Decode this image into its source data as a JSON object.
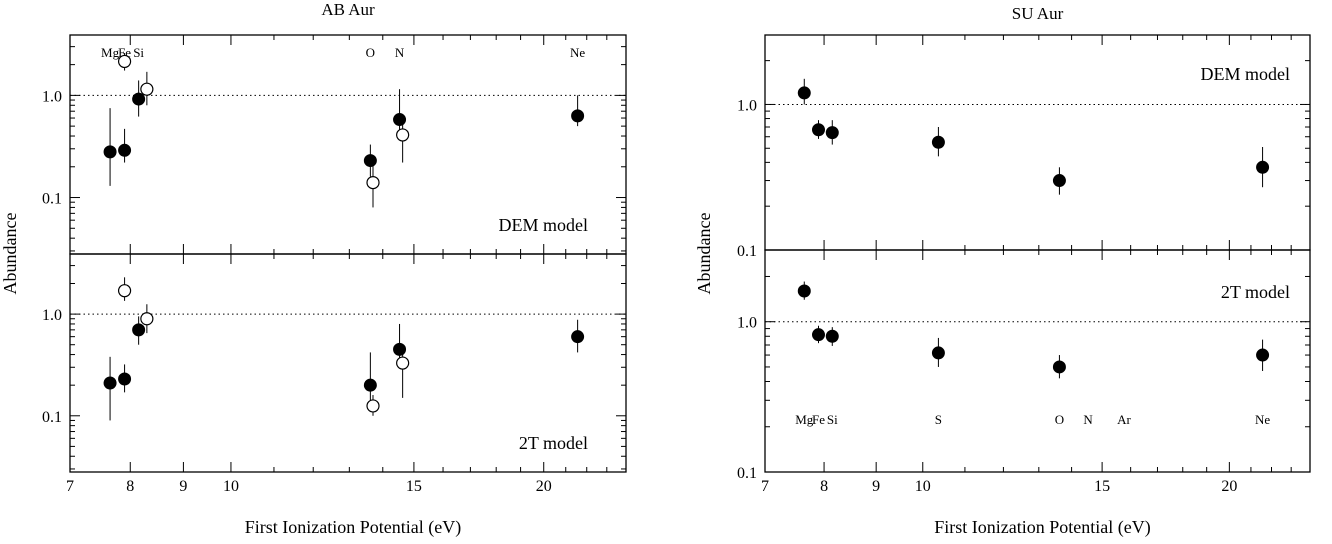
{
  "chart_data": [
    {
      "type": "scatter",
      "title": "AB Aur",
      "xlabel": "First Ionization Potential (eV)",
      "ylabel": "Abundance",
      "xscale": "log",
      "yscale": "log",
      "xlim": [
        7,
        24
      ],
      "x_ticks": [
        7,
        8,
        9,
        10,
        15,
        20
      ],
      "grid": false,
      "reference_line": {
        "y": 1.0,
        "style": "dotted"
      },
      "element_labels": [
        {
          "text": "Mg",
          "x": 7.65
        },
        {
          "text": "Fe",
          "x": 7.9
        },
        {
          "text": "Si",
          "x": 8.15
        },
        {
          "text": "O",
          "x": 13.62
        },
        {
          "text": "N",
          "x": 14.53
        },
        {
          "text": "Ne",
          "x": 21.56
        }
      ],
      "panels": [
        {
          "label": "DEM model",
          "ylim": [
            0.028,
            3.9
          ],
          "y_ticks": [
            {
              "v": 0.1,
              "label": "0.1"
            },
            {
              "v": 1.0,
              "label": "1.0"
            }
          ],
          "series": [
            {
              "marker": "filled",
              "points": [
                {
                  "x": 7.65,
                  "y": 0.28,
                  "lo": 0.13,
                  "hi": 0.75
                },
                {
                  "x": 7.9,
                  "y": 0.29,
                  "lo": 0.22,
                  "hi": 0.47
                },
                {
                  "x": 8.15,
                  "y": 0.92,
                  "lo": 0.62,
                  "hi": 1.4
                },
                {
                  "x": 13.62,
                  "y": 0.23,
                  "lo": 0.16,
                  "hi": 0.33
                },
                {
                  "x": 14.53,
                  "y": 0.58,
                  "lo": 0.38,
                  "hi": 1.15
                },
                {
                  "x": 21.56,
                  "y": 0.63,
                  "lo": 0.5,
                  "hi": 1.0
                }
              ]
            },
            {
              "marker": "open",
              "points": [
                {
                  "x": 7.9,
                  "y": 2.15,
                  "lo": 1.75,
                  "hi": 2.6
                },
                {
                  "x": 8.3,
                  "y": 1.15,
                  "lo": 0.8,
                  "hi": 1.7
                },
                {
                  "x": 13.7,
                  "y": 0.14,
                  "lo": 0.08,
                  "hi": 0.22
                },
                {
                  "x": 14.63,
                  "y": 0.41,
                  "lo": 0.22,
                  "hi": 0.6
                }
              ]
            }
          ]
        },
        {
          "label": "2T model",
          "ylim": [
            0.028,
            3.9
          ],
          "y_ticks": [
            {
              "v": 0.1,
              "label": "0.1"
            },
            {
              "v": 1.0,
              "label": "1.0"
            }
          ],
          "series": [
            {
              "marker": "filled",
              "points": [
                {
                  "x": 7.65,
                  "y": 0.21,
                  "lo": 0.09,
                  "hi": 0.38
                },
                {
                  "x": 7.9,
                  "y": 0.23,
                  "lo": 0.17,
                  "hi": 0.32
                },
                {
                  "x": 8.15,
                  "y": 0.7,
                  "lo": 0.5,
                  "hi": 0.95
                },
                {
                  "x": 13.62,
                  "y": 0.2,
                  "lo": 0.12,
                  "hi": 0.42
                },
                {
                  "x": 14.53,
                  "y": 0.45,
                  "lo": 0.3,
                  "hi": 0.8
                }
              ]
            },
            {
              "marker": "filled",
              "points": [
                {
                  "x": 21.56,
                  "y": 0.6,
                  "lo": 0.42,
                  "hi": 0.88
                }
              ]
            },
            {
              "marker": "open",
              "points": [
                {
                  "x": 7.9,
                  "y": 1.7,
                  "lo": 1.35,
                  "hi": 2.3
                },
                {
                  "x": 8.3,
                  "y": 0.9,
                  "lo": 0.65,
                  "hi": 1.25
                },
                {
                  "x": 13.7,
                  "y": 0.125,
                  "lo": 0.1,
                  "hi": 0.16
                },
                {
                  "x": 14.63,
                  "y": 0.33,
                  "lo": 0.15,
                  "hi": 0.5
                }
              ]
            }
          ]
        }
      ]
    },
    {
      "type": "scatter",
      "title": "SU Aur",
      "xlabel": "First Ionization Potential (eV)",
      "ylabel": "Abundance",
      "xscale": "log",
      "yscale": "log",
      "xlim": [
        7,
        24
      ],
      "x_ticks": [
        7,
        8,
        9,
        10,
        15,
        20
      ],
      "grid": false,
      "reference_line": {
        "y": 1.0,
        "style": "dotted"
      },
      "element_labels": [
        {
          "text": "Mg",
          "x": 7.65
        },
        {
          "text": "Fe",
          "x": 7.9
        },
        {
          "text": "Si",
          "x": 8.15
        },
        {
          "text": "S",
          "x": 10.36
        },
        {
          "text": "O",
          "x": 13.62
        },
        {
          "text": "N",
          "x": 14.53
        },
        {
          "text": "Ar",
          "x": 15.76
        },
        {
          "text": "Ne",
          "x": 21.56
        }
      ],
      "panels": [
        {
          "label": "DEM model",
          "ylim": [
            0.1,
            3.0
          ],
          "y_ticks": [
            {
              "v": 0.1,
              "label": "0.1"
            },
            {
              "v": 1.0,
              "label": "1.0"
            }
          ],
          "series": [
            {
              "marker": "filled",
              "points": [
                {
                  "x": 7.65,
                  "y": 1.2,
                  "lo": 1.0,
                  "hi": 1.5
                },
                {
                  "x": 7.9,
                  "y": 0.67,
                  "lo": 0.58,
                  "hi": 0.78
                },
                {
                  "x": 8.15,
                  "y": 0.64,
                  "lo": 0.53,
                  "hi": 0.78
                },
                {
                  "x": 10.36,
                  "y": 0.55,
                  "lo": 0.44,
                  "hi": 0.7
                },
                {
                  "x": 13.62,
                  "y": 0.3,
                  "lo": 0.24,
                  "hi": 0.37
                },
                {
                  "x": 21.56,
                  "y": 0.37,
                  "lo": 0.27,
                  "hi": 0.51
                }
              ]
            }
          ]
        },
        {
          "label": "2T model",
          "ylim": [
            0.1,
            3.0
          ],
          "y_ticks": [
            {
              "v": 0.1,
              "label": "0.1"
            },
            {
              "v": 1.0,
              "label": "1.0"
            }
          ],
          "series": [
            {
              "marker": "filled",
              "points": [
                {
                  "x": 7.65,
                  "y": 1.6,
                  "lo": 1.4,
                  "hi": 1.85
                },
                {
                  "x": 7.9,
                  "y": 0.82,
                  "lo": 0.72,
                  "hi": 0.94
                },
                {
                  "x": 8.15,
                  "y": 0.8,
                  "lo": 0.69,
                  "hi": 0.92
                },
                {
                  "x": 10.36,
                  "y": 0.62,
                  "lo": 0.5,
                  "hi": 0.78
                },
                {
                  "x": 13.62,
                  "y": 0.5,
                  "lo": 0.42,
                  "hi": 0.6
                },
                {
                  "x": 21.56,
                  "y": 0.6,
                  "lo": 0.47,
                  "hi": 0.76
                }
              ]
            }
          ]
        }
      ]
    }
  ]
}
